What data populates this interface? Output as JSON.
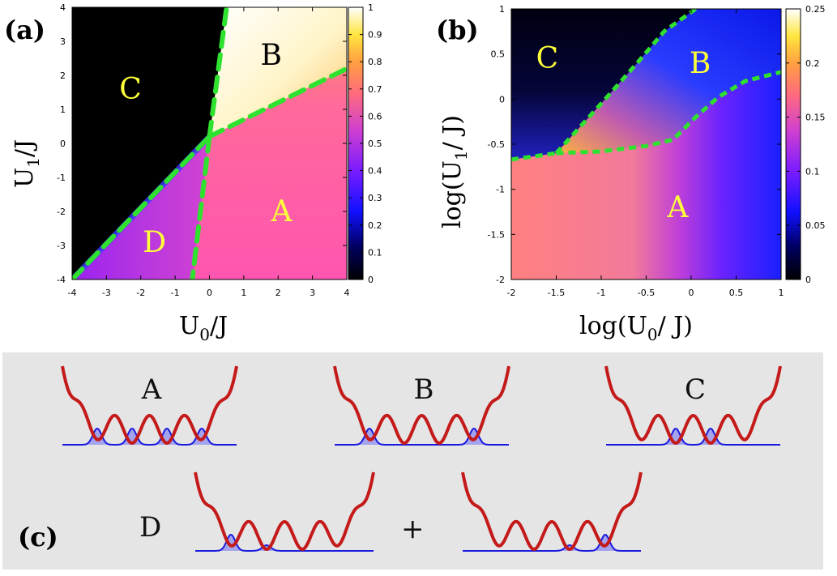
{
  "chart_data": [
    {
      "panel": "(a)",
      "type": "heatmap",
      "title": "",
      "xlabel": "U",
      "xlabel_sub": "0",
      "xlabel_suffix": "/J",
      "ylabel": "U",
      "ylabel_sub": "1",
      "ylabel_suffix": "/J",
      "xlim": [
        -4,
        4
      ],
      "ylim": [
        -4,
        4
      ],
      "x_ticks": [
        -4,
        -3,
        -2,
        -1,
        0,
        1,
        2,
        3,
        4
      ],
      "y_ticks": [
        -4,
        -3,
        -2,
        -1,
        0,
        1,
        2,
        3,
        4
      ],
      "colorbar": {
        "min": 0,
        "max": 1,
        "ticks": [
          "0",
          "0.1",
          "0.2",
          "0.3",
          "0.4",
          "0.5",
          "0.6",
          "0.7",
          "0.8",
          "0.9",
          "1"
        ]
      },
      "regions": [
        {
          "label": "C",
          "x": -2.3,
          "y": 1.6,
          "color": "#ffff3a"
        },
        {
          "label": "B",
          "x": 1.8,
          "y": 2.6,
          "color": "#000000"
        },
        {
          "label": "A",
          "x": 2.1,
          "y": -2.0,
          "color": "#ffff3a"
        },
        {
          "label": "D",
          "x": -1.6,
          "y": -2.9,
          "color": "#ffff3a"
        }
      ],
      "boundaries": [
        {
          "name": "C-B",
          "points": [
            [
              0,
              0.2
            ],
            [
              0.5,
              4.0
            ]
          ]
        },
        {
          "name": "B-A",
          "points": [
            [
              0,
              0.2
            ],
            [
              4.0,
              2.2
            ]
          ]
        },
        {
          "name": "C-D",
          "points": [
            [
              -4.0,
              -4.0
            ],
            [
              0,
              0.2
            ]
          ]
        },
        {
          "name": "D-A",
          "points": [
            [
              0,
              0.2
            ],
            [
              -0.5,
              -4.0
            ]
          ]
        }
      ]
    },
    {
      "panel": "(b)",
      "type": "heatmap",
      "title": "",
      "xlabel": "log(U",
      "xlabel_sub": "0",
      "xlabel_suffix": "/ J)",
      "ylabel": "log(U",
      "ylabel_sub": "1",
      "ylabel_suffix": "/ J)",
      "xlim": [
        -2,
        1
      ],
      "ylim": [
        -2,
        1
      ],
      "x_ticks": [
        "-2",
        "-1.5",
        "-1",
        "-0.5",
        "0",
        "0.5",
        "1"
      ],
      "y_ticks": [
        "-2",
        "-1.5",
        "-1",
        "-0.5",
        "0",
        "0.5",
        "1"
      ],
      "colorbar": {
        "min": 0,
        "max": 0.25,
        "ticks": [
          "0",
          "0.05",
          "0.1",
          "0.15",
          "0.2",
          "0.25"
        ]
      },
      "regions": [
        {
          "label": "C",
          "x": -1.6,
          "y": 0.45,
          "color": "#ffff3a"
        },
        {
          "label": "B",
          "x": 0.1,
          "y": 0.4,
          "color": "#ffff3a"
        },
        {
          "label": "A",
          "x": -0.15,
          "y": -1.2,
          "color": "#ffff3a"
        }
      ],
      "boundaries": [
        {
          "name": "C-B",
          "points": [
            [
              -1.5,
              -0.6
            ],
            [
              -1.0,
              -0.05
            ],
            [
              -0.6,
              0.4
            ],
            [
              -0.3,
              0.75
            ],
            [
              0.05,
              1.0
            ]
          ]
        },
        {
          "name": "C-A",
          "points": [
            [
              -2.0,
              -0.67
            ],
            [
              -1.5,
              -0.6
            ]
          ]
        },
        {
          "name": "B-A",
          "points": [
            [
              -1.5,
              -0.6
            ],
            [
              -1.0,
              -0.58
            ],
            [
              -0.5,
              -0.52
            ],
            [
              -0.2,
              -0.45
            ],
            [
              0.05,
              -0.2
            ],
            [
              0.3,
              0.02
            ],
            [
              0.6,
              0.2
            ],
            [
              1.0,
              0.3
            ]
          ]
        }
      ]
    }
  ],
  "schematic": {
    "panel_label": "(c)",
    "configs": [
      {
        "label": "A",
        "peaks": [
          1,
          1,
          1,
          1
        ]
      },
      {
        "label": "B",
        "peaks": [
          1,
          0,
          0,
          1
        ]
      },
      {
        "label": "C",
        "peaks": [
          0,
          1,
          1,
          0
        ]
      }
    ],
    "d_label": "D",
    "d_plus": "+",
    "d_configs": [
      {
        "peaks": [
          1,
          0.35,
          0,
          0
        ]
      },
      {
        "peaks": [
          0,
          0,
          0.35,
          1
        ]
      }
    ],
    "colors": {
      "potential": "#c41a1a",
      "wavefunction": "#1a1adf",
      "fill": "#a4a4ee",
      "panel_bg": "#e5e5e5",
      "boundary": "#2fe22f"
    }
  }
}
